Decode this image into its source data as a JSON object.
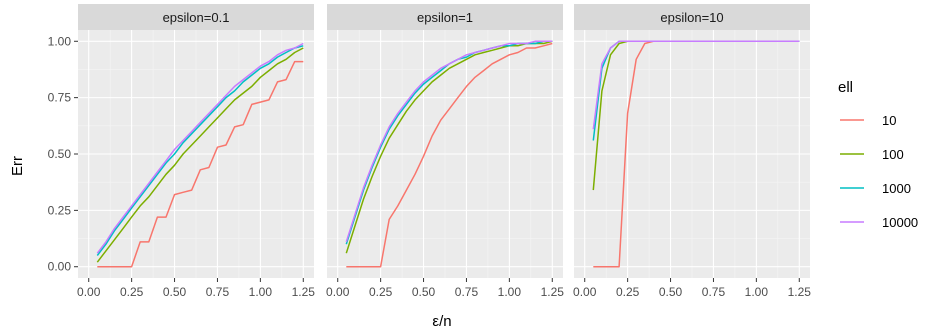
{
  "chart_data": {
    "type": "line",
    "xlabel": "ε/n",
    "ylabel": "Err",
    "xlim": [
      0,
      1.25
    ],
    "ylim": [
      0,
      1
    ],
    "x_ticks": [
      "0.00",
      "0.25",
      "0.50",
      "0.75",
      "1.00",
      "1.25"
    ],
    "y_ticks": [
      "0.00",
      "0.25",
      "0.50",
      "0.75",
      "1.00"
    ],
    "grid": true,
    "legend": {
      "title": "ell",
      "position": "right"
    },
    "panels": [
      {
        "label": "epsilon=0.1",
        "series": [
          {
            "name": "10",
            "color": "#F8766D",
            "x": [
              0.05,
              0.1,
              0.15,
              0.2,
              0.25,
              0.3,
              0.35,
              0.4,
              0.45,
              0.5,
              0.55,
              0.6,
              0.65,
              0.7,
              0.75,
              0.8,
              0.85,
              0.9,
              0.95,
              1.0,
              1.05,
              1.1,
              1.15,
              1.2,
              1.25
            ],
            "y": [
              0.0,
              0.0,
              0.0,
              0.0,
              0.0,
              0.11,
              0.11,
              0.22,
              0.22,
              0.32,
              0.33,
              0.34,
              0.43,
              0.44,
              0.53,
              0.54,
              0.62,
              0.63,
              0.72,
              0.73,
              0.74,
              0.82,
              0.83,
              0.91,
              0.91
            ]
          },
          {
            "name": "100",
            "color": "#7CAE00",
            "x": [
              0.05,
              0.1,
              0.15,
              0.2,
              0.25,
              0.3,
              0.35,
              0.4,
              0.45,
              0.5,
              0.55,
              0.6,
              0.65,
              0.7,
              0.75,
              0.8,
              0.85,
              0.9,
              0.95,
              1.0,
              1.05,
              1.1,
              1.15,
              1.2,
              1.25
            ],
            "y": [
              0.02,
              0.07,
              0.12,
              0.17,
              0.22,
              0.27,
              0.31,
              0.36,
              0.41,
              0.45,
              0.5,
              0.54,
              0.58,
              0.62,
              0.66,
              0.7,
              0.74,
              0.77,
              0.8,
              0.84,
              0.87,
              0.9,
              0.92,
              0.95,
              0.97
            ]
          },
          {
            "name": "1000",
            "color": "#00BFC4",
            "x": [
              0.05,
              0.1,
              0.15,
              0.2,
              0.25,
              0.3,
              0.35,
              0.4,
              0.45,
              0.5,
              0.55,
              0.6,
              0.65,
              0.7,
              0.75,
              0.8,
              0.85,
              0.9,
              0.95,
              1.0,
              1.05,
              1.1,
              1.15,
              1.2,
              1.25
            ],
            "y": [
              0.05,
              0.1,
              0.16,
              0.21,
              0.26,
              0.31,
              0.36,
              0.41,
              0.46,
              0.5,
              0.55,
              0.59,
              0.63,
              0.67,
              0.71,
              0.75,
              0.78,
              0.82,
              0.85,
              0.88,
              0.9,
              0.93,
              0.95,
              0.97,
              0.98
            ]
          },
          {
            "name": "10000",
            "color": "#C77CFF",
            "x": [
              0.05,
              0.1,
              0.15,
              0.2,
              0.25,
              0.3,
              0.35,
              0.4,
              0.45,
              0.5,
              0.55,
              0.6,
              0.65,
              0.7,
              0.75,
              0.8,
              0.85,
              0.9,
              0.95,
              1.0,
              1.05,
              1.1,
              1.15,
              1.2,
              1.25
            ],
            "y": [
              0.06,
              0.11,
              0.17,
              0.22,
              0.27,
              0.32,
              0.37,
              0.42,
              0.47,
              0.52,
              0.56,
              0.6,
              0.64,
              0.68,
              0.72,
              0.76,
              0.8,
              0.83,
              0.86,
              0.89,
              0.91,
              0.94,
              0.96,
              0.97,
              0.99
            ]
          }
        ]
      },
      {
        "label": "epsilon=1",
        "series": [
          {
            "name": "10",
            "color": "#F8766D",
            "x": [
              0.05,
              0.1,
              0.15,
              0.2,
              0.25,
              0.3,
              0.35,
              0.4,
              0.45,
              0.5,
              0.55,
              0.6,
              0.65,
              0.7,
              0.75,
              0.8,
              0.85,
              0.9,
              0.95,
              1.0,
              1.05,
              1.1,
              1.15,
              1.2,
              1.25
            ],
            "y": [
              0.0,
              0.0,
              0.0,
              0.0,
              0.0,
              0.21,
              0.27,
              0.34,
              0.41,
              0.49,
              0.58,
              0.65,
              0.7,
              0.75,
              0.8,
              0.84,
              0.87,
              0.9,
              0.92,
              0.94,
              0.95,
              0.97,
              0.97,
              0.98,
              0.99
            ]
          },
          {
            "name": "100",
            "color": "#7CAE00",
            "x": [
              0.05,
              0.1,
              0.15,
              0.2,
              0.25,
              0.3,
              0.35,
              0.4,
              0.45,
              0.5,
              0.55,
              0.6,
              0.65,
              0.7,
              0.75,
              0.8,
              0.85,
              0.9,
              0.95,
              1.0,
              1.05,
              1.1,
              1.15,
              1.2,
              1.25
            ],
            "y": [
              0.06,
              0.18,
              0.3,
              0.4,
              0.49,
              0.57,
              0.63,
              0.69,
              0.74,
              0.78,
              0.82,
              0.85,
              0.88,
              0.9,
              0.92,
              0.94,
              0.95,
              0.96,
              0.97,
              0.98,
              0.98,
              0.99,
              0.99,
              0.99,
              1.0
            ]
          },
          {
            "name": "1000",
            "color": "#00BFC4",
            "x": [
              0.05,
              0.1,
              0.15,
              0.2,
              0.25,
              0.3,
              0.35,
              0.4,
              0.45,
              0.5,
              0.55,
              0.6,
              0.65,
              0.7,
              0.75,
              0.8,
              0.85,
              0.9,
              0.95,
              1.0,
              1.05,
              1.1,
              1.15,
              1.2,
              1.25
            ],
            "y": [
              0.1,
              0.22,
              0.34,
              0.44,
              0.53,
              0.61,
              0.67,
              0.72,
              0.77,
              0.81,
              0.84,
              0.87,
              0.9,
              0.92,
              0.93,
              0.95,
              0.96,
              0.97,
              0.98,
              0.98,
              0.99,
              0.99,
              0.99,
              1.0,
              1.0
            ]
          },
          {
            "name": "10000",
            "color": "#C77CFF",
            "x": [
              0.05,
              0.1,
              0.15,
              0.2,
              0.25,
              0.3,
              0.35,
              0.4,
              0.45,
              0.5,
              0.55,
              0.6,
              0.65,
              0.7,
              0.75,
              0.8,
              0.85,
              0.9,
              0.95,
              1.0,
              1.05,
              1.1,
              1.15,
              1.2,
              1.25
            ],
            "y": [
              0.11,
              0.23,
              0.35,
              0.45,
              0.54,
              0.62,
              0.68,
              0.73,
              0.78,
              0.82,
              0.85,
              0.88,
              0.9,
              0.92,
              0.94,
              0.95,
              0.96,
              0.97,
              0.98,
              0.99,
              0.99,
              0.99,
              1.0,
              1.0,
              1.0
            ]
          }
        ]
      },
      {
        "label": "epsilon=10",
        "series": [
          {
            "name": "10",
            "color": "#F8766D",
            "x": [
              0.05,
              0.1,
              0.15,
              0.2,
              0.25,
              0.3,
              0.35,
              0.4,
              0.45,
              0.5,
              0.55,
              0.6,
              0.65,
              0.7,
              0.75,
              0.8,
              0.85,
              0.9,
              0.95,
              1.0,
              1.05,
              1.1,
              1.15,
              1.2,
              1.25
            ],
            "y": [
              0.0,
              0.0,
              0.0,
              0.0,
              0.68,
              0.92,
              0.99,
              1.0,
              1.0,
              1.0,
              1.0,
              1.0,
              1.0,
              1.0,
              1.0,
              1.0,
              1.0,
              1.0,
              1.0,
              1.0,
              1.0,
              1.0,
              1.0,
              1.0,
              1.0
            ]
          },
          {
            "name": "100",
            "color": "#7CAE00",
            "x": [
              0.05,
              0.1,
              0.15,
              0.2,
              0.25,
              0.3,
              0.35,
              0.4,
              0.45,
              0.5,
              0.55,
              0.6,
              0.65,
              0.7,
              0.75,
              0.8,
              0.85,
              0.9,
              0.95,
              1.0,
              1.05,
              1.1,
              1.15,
              1.2,
              1.25
            ],
            "y": [
              0.34,
              0.78,
              0.94,
              0.99,
              1.0,
              1.0,
              1.0,
              1.0,
              1.0,
              1.0,
              1.0,
              1.0,
              1.0,
              1.0,
              1.0,
              1.0,
              1.0,
              1.0,
              1.0,
              1.0,
              1.0,
              1.0,
              1.0,
              1.0,
              1.0
            ]
          },
          {
            "name": "1000",
            "color": "#00BFC4",
            "x": [
              0.05,
              0.1,
              0.15,
              0.2,
              0.25,
              0.3,
              0.35,
              0.4,
              0.45,
              0.5,
              0.55,
              0.6,
              0.65,
              0.7,
              0.75,
              0.8,
              0.85,
              0.9,
              0.95,
              1.0,
              1.05,
              1.1,
              1.15,
              1.2,
              1.25
            ],
            "y": [
              0.56,
              0.88,
              0.97,
              1.0,
              1.0,
              1.0,
              1.0,
              1.0,
              1.0,
              1.0,
              1.0,
              1.0,
              1.0,
              1.0,
              1.0,
              1.0,
              1.0,
              1.0,
              1.0,
              1.0,
              1.0,
              1.0,
              1.0,
              1.0,
              1.0
            ]
          },
          {
            "name": "10000",
            "color": "#C77CFF",
            "x": [
              0.05,
              0.1,
              0.15,
              0.2,
              0.25,
              0.3,
              0.35,
              0.4,
              0.45,
              0.5,
              0.55,
              0.6,
              0.65,
              0.7,
              0.75,
              0.8,
              0.85,
              0.9,
              0.95,
              1.0,
              1.05,
              1.1,
              1.15,
              1.2,
              1.25
            ],
            "y": [
              0.61,
              0.9,
              0.97,
              1.0,
              1.0,
              1.0,
              1.0,
              1.0,
              1.0,
              1.0,
              1.0,
              1.0,
              1.0,
              1.0,
              1.0,
              1.0,
              1.0,
              1.0,
              1.0,
              1.0,
              1.0,
              1.0,
              1.0,
              1.0,
              1.0
            ]
          }
        ]
      }
    ]
  }
}
